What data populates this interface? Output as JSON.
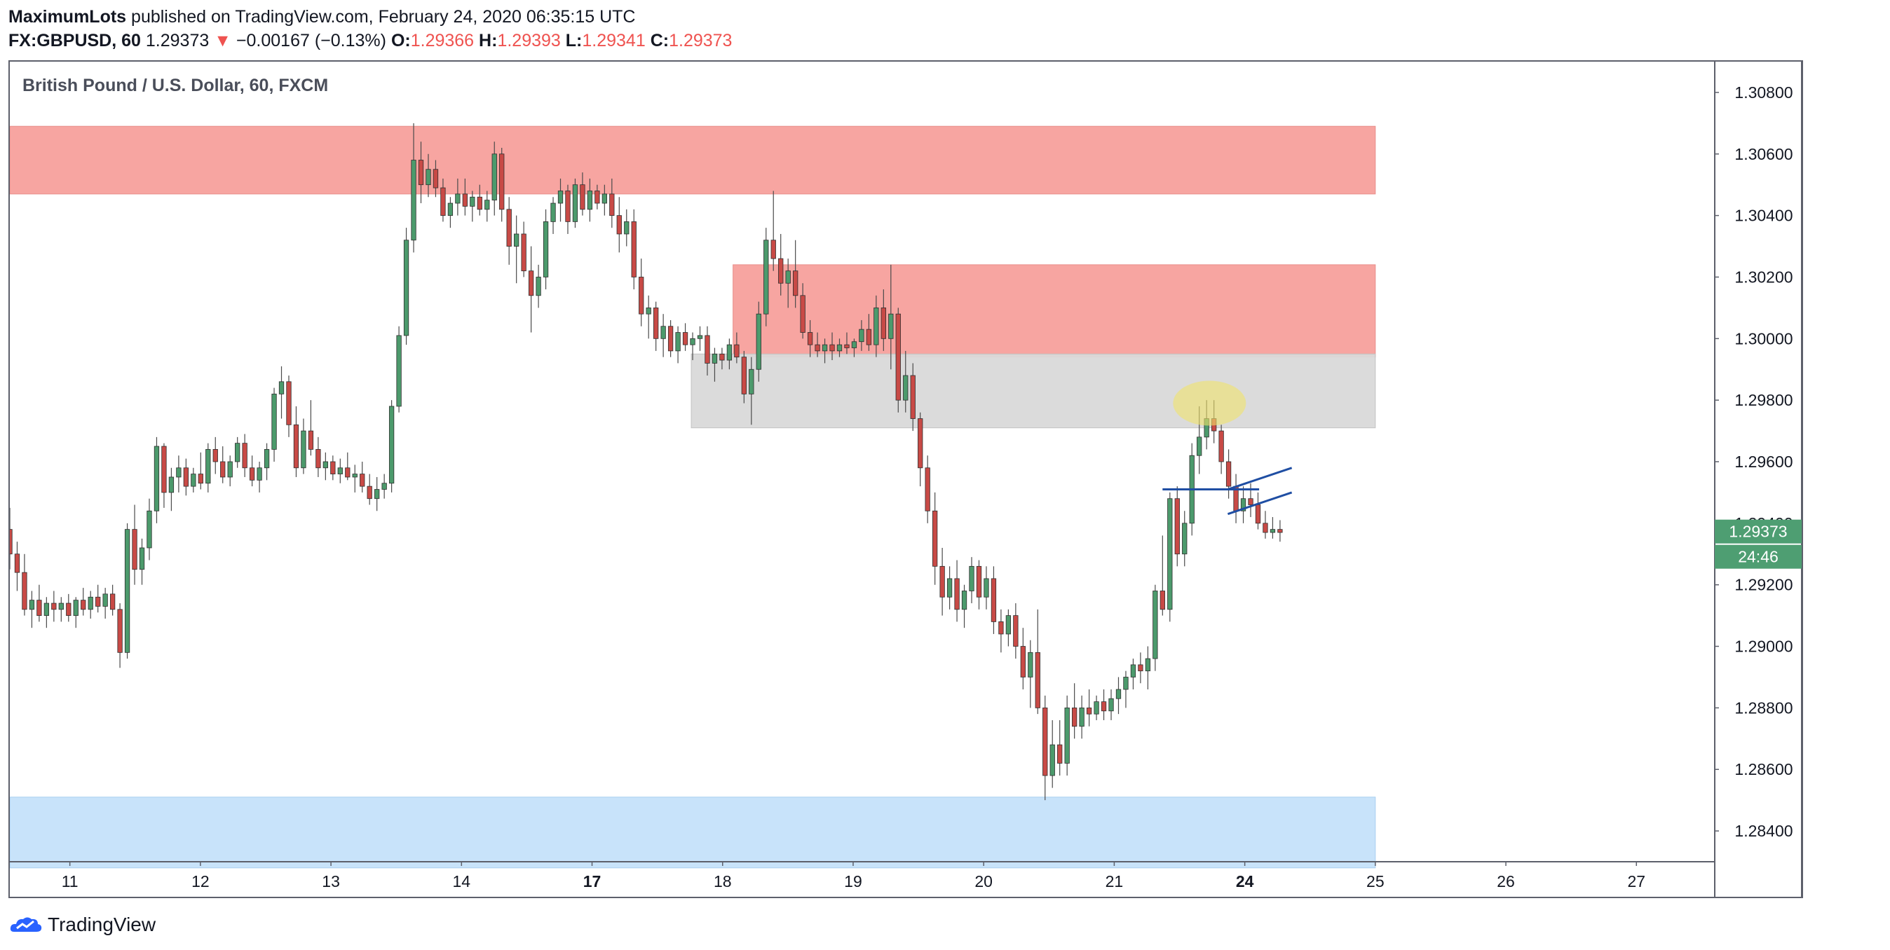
{
  "header": {
    "author": "MaximumLots",
    "published_text": " published on TradingView.com, February 24, 2020 06:35:15 UTC",
    "symbol": "FX:GBPUSD, 60",
    "last": "1.29373",
    "change_arrow": "▼",
    "change": "−0.00167 (−0.13%)",
    "o_label": "O:",
    "o": "1.29366",
    "h_label": "H:",
    "h": "1.29393",
    "l_label": "L:",
    "l": "1.29341",
    "c_label": "C:",
    "c": "1.29373"
  },
  "pane_title": "British Pound / U.S. Dollar, 60, FXCM",
  "price_label": "1.29373",
  "countdown": "24:46",
  "brand": "TradingView",
  "colors": {
    "up": "#26a69a",
    "up_fill": "#4c9a6c",
    "down": "#ef5350",
    "down_fill": "#c84a46",
    "resistance": "#f7a09c",
    "support": "#c5e1fa",
    "neutral_zone": "#d9d9d9",
    "highlight": "#f0e26b",
    "drawing_line": "#1f4ea3",
    "price_tag": "#4e9e72"
  },
  "chart_data": {
    "type": "candlestick",
    "symbol": "GBPUSD",
    "ylim": [
      1.283,
      1.309
    ],
    "y_ticks": [
      "1.30800",
      "1.30600",
      "1.30400",
      "1.30200",
      "1.30000",
      "1.29800",
      "1.29600",
      "1.29400",
      "1.29200",
      "1.29000",
      "1.28800",
      "1.28600",
      "1.28400"
    ],
    "x_ticks": [
      {
        "label": "11",
        "day": 11
      },
      {
        "label": "12",
        "day": 12
      },
      {
        "label": "13",
        "day": 13
      },
      {
        "label": "14",
        "day": 14
      },
      {
        "label": "17",
        "day": 15
      },
      {
        "label": "18",
        "day": 16
      },
      {
        "label": "19",
        "day": 17
      },
      {
        "label": "20",
        "day": 18
      },
      {
        "label": "21",
        "day": 19
      },
      {
        "label": "24",
        "day": 20
      },
      {
        "label": "25",
        "day": 21
      },
      {
        "label": "26",
        "day": 22
      },
      {
        "label": "27",
        "day": 23
      }
    ],
    "xlim": [
      10.54,
      23.6
    ],
    "zones": [
      {
        "name": "resistance-zone-upper",
        "from_day": 10.54,
        "to_day": 21.0,
        "low": 1.3047,
        "high": 1.3069,
        "kind": "resistance"
      },
      {
        "name": "resistance-zone-lower",
        "from_day": 16.08,
        "to_day": 21.0,
        "low": 1.2994,
        "high": 1.3024,
        "kind": "resistance"
      },
      {
        "name": "neutral-zone",
        "from_day": 15.76,
        "to_day": 21.0,
        "low": 1.2971,
        "high": 1.2995,
        "kind": "neutral"
      },
      {
        "name": "support-zone",
        "from_day": 10.54,
        "to_day": 21.0,
        "low": 1.2828,
        "high": 1.2851,
        "kind": "support"
      }
    ],
    "highlight": {
      "day": 19.73,
      "price": 1.2979
    },
    "lines": [
      {
        "from": [
          19.37,
          1.2951
        ],
        "to": [
          20.11,
          1.2951
        ]
      },
      {
        "from": [
          19.87,
          1.2951
        ],
        "to": [
          20.36,
          1.2958
        ]
      },
      {
        "from": [
          19.87,
          1.2943
        ],
        "to": [
          20.36,
          1.295
        ]
      }
    ],
    "candles": [
      [
        1.2938,
        1.2945,
        1.2925,
        1.293
      ],
      [
        1.293,
        1.2934,
        1.2918,
        1.2924
      ],
      [
        1.2924,
        1.293,
        1.291,
        1.2912
      ],
      [
        1.2912,
        1.2918,
        1.2906,
        1.2915
      ],
      [
        1.2915,
        1.292,
        1.2908,
        1.291
      ],
      [
        1.291,
        1.2916,
        1.2906,
        1.2914
      ],
      [
        1.2914,
        1.2918,
        1.2908,
        1.2912
      ],
      [
        1.2912,
        1.2916,
        1.2908,
        1.2914
      ],
      [
        1.2914,
        1.2917,
        1.2908,
        1.291
      ],
      [
        1.291,
        1.2916,
        1.2906,
        1.2915
      ],
      [
        1.2915,
        1.2919,
        1.291,
        1.2912
      ],
      [
        1.2912,
        1.2918,
        1.2909,
        1.2916
      ],
      [
        1.2916,
        1.292,
        1.2911,
        1.2913
      ],
      [
        1.2913,
        1.2919,
        1.2909,
        1.2917
      ],
      [
        1.2917,
        1.292,
        1.291,
        1.2912
      ],
      [
        1.2912,
        1.2914,
        1.2893,
        1.2898
      ],
      [
        1.2898,
        1.294,
        1.2896,
        1.2938
      ],
      [
        1.2938,
        1.2946,
        1.292,
        1.2925
      ],
      [
        1.2925,
        1.2935,
        1.292,
        1.2932
      ],
      [
        1.2932,
        1.2948,
        1.2928,
        1.2944
      ],
      [
        1.2944,
        1.2968,
        1.294,
        1.2965
      ],
      [
        1.2965,
        1.2966,
        1.2945,
        1.295
      ],
      [
        1.295,
        1.2958,
        1.2944,
        1.2955
      ],
      [
        1.2955,
        1.2962,
        1.295,
        1.2958
      ],
      [
        1.2958,
        1.2961,
        1.2949,
        1.2952
      ],
      [
        1.2952,
        1.2958,
        1.295,
        1.2956
      ],
      [
        1.2956,
        1.2963,
        1.2951,
        1.2953
      ],
      [
        1.2953,
        1.2966,
        1.295,
        1.2964
      ],
      [
        1.2964,
        1.2968,
        1.2956,
        1.296
      ],
      [
        1.296,
        1.2965,
        1.2953,
        1.2955
      ],
      [
        1.2955,
        1.2962,
        1.2952,
        1.296
      ],
      [
        1.296,
        1.2968,
        1.2958,
        1.2966
      ],
      [
        1.2966,
        1.2969,
        1.2955,
        1.2958
      ],
      [
        1.2958,
        1.2962,
        1.2952,
        1.2954
      ],
      [
        1.2954,
        1.296,
        1.295,
        1.2958
      ],
      [
        1.2958,
        1.2966,
        1.2954,
        1.2964
      ],
      [
        1.2964,
        1.2984,
        1.296,
        1.2982
      ],
      [
        1.2982,
        1.2991,
        1.2974,
        1.2986
      ],
      [
        1.2986,
        1.2988,
        1.2968,
        1.2972
      ],
      [
        1.2972,
        1.2978,
        1.2955,
        1.2958
      ],
      [
        1.2958,
        1.2974,
        1.2956,
        1.297
      ],
      [
        1.297,
        1.298,
        1.2962,
        1.2964
      ],
      [
        1.2964,
        1.2968,
        1.2955,
        1.2958
      ],
      [
        1.2958,
        1.2963,
        1.2954,
        1.296
      ],
      [
        1.296,
        1.2962,
        1.2954,
        1.2956
      ],
      [
        1.2956,
        1.2961,
        1.2953,
        1.2958
      ],
      [
        1.2958,
        1.2963,
        1.2954,
        1.2955
      ],
      [
        1.2955,
        1.2959,
        1.295,
        1.2956
      ],
      [
        1.2956,
        1.296,
        1.295,
        1.2952
      ],
      [
        1.2952,
        1.2956,
        1.2946,
        1.2948
      ],
      [
        1.2948,
        1.2955,
        1.2944,
        1.2951
      ],
      [
        1.2951,
        1.2956,
        1.2948,
        1.2953
      ],
      [
        1.2953,
        1.298,
        1.295,
        1.2978
      ],
      [
        1.2978,
        1.3004,
        1.2976,
        1.3001
      ],
      [
        1.3001,
        1.3036,
        1.2998,
        1.3032
      ],
      [
        1.3032,
        1.307,
        1.3028,
        1.3058
      ],
      [
        1.3058,
        1.3064,
        1.3044,
        1.305
      ],
      [
        1.305,
        1.306,
        1.3046,
        1.3055
      ],
      [
        1.3055,
        1.3058,
        1.3046,
        1.3049
      ],
      [
        1.3049,
        1.3052,
        1.3038,
        1.304
      ],
      [
        1.304,
        1.3046,
        1.3036,
        1.3044
      ],
      [
        1.3044,
        1.3052,
        1.304,
        1.3047
      ],
      [
        1.3047,
        1.3052,
        1.304,
        1.3043
      ],
      [
        1.3043,
        1.3048,
        1.3038,
        1.3046
      ],
      [
        1.3046,
        1.305,
        1.304,
        1.3042
      ],
      [
        1.3042,
        1.3048,
        1.3038,
        1.3045
      ],
      [
        1.3045,
        1.3064,
        1.304,
        1.306
      ],
      [
        1.306,
        1.3062,
        1.3038,
        1.3042
      ],
      [
        1.3042,
        1.3046,
        1.3024,
        1.303
      ],
      [
        1.303,
        1.304,
        1.3018,
        1.3034
      ],
      [
        1.3034,
        1.3038,
        1.302,
        1.3022
      ],
      [
        1.3022,
        1.303,
        1.3002,
        1.3014
      ],
      [
        1.3014,
        1.3024,
        1.301,
        1.302
      ],
      [
        1.302,
        1.3042,
        1.3016,
        1.3038
      ],
      [
        1.3038,
        1.3046,
        1.3034,
        1.3044
      ],
      [
        1.3044,
        1.3052,
        1.3038,
        1.3048
      ],
      [
        1.3048,
        1.305,
        1.3034,
        1.3038
      ],
      [
        1.3038,
        1.3052,
        1.3036,
        1.305
      ],
      [
        1.305,
        1.3054,
        1.304,
        1.3042
      ],
      [
        1.3042,
        1.3052,
        1.3038,
        1.3048
      ],
      [
        1.3048,
        1.305,
        1.3042,
        1.3044
      ],
      [
        1.3044,
        1.305,
        1.304,
        1.3047
      ],
      [
        1.3047,
        1.3052,
        1.3036,
        1.304
      ],
      [
        1.304,
        1.3046,
        1.3028,
        1.3034
      ],
      [
        1.3034,
        1.3042,
        1.303,
        1.3038
      ],
      [
        1.3038,
        1.3042,
        1.3016,
        1.302
      ],
      [
        1.302,
        1.3026,
        1.3004,
        1.3008
      ],
      [
        1.3008,
        1.3014,
        1.3,
        1.301
      ],
      [
        1.301,
        1.3012,
        1.2996,
        1.3
      ],
      [
        1.3,
        1.3008,
        1.2994,
        1.3004
      ],
      [
        1.3004,
        1.3006,
        1.2994,
        1.2996
      ],
      [
        1.2996,
        1.3004,
        1.2992,
        1.3002
      ],
      [
        1.3002,
        1.3005,
        1.2996,
        1.2998
      ],
      [
        1.2998,
        1.3002,
        1.2993,
        1.3
      ],
      [
        1.3,
        1.3004,
        1.2996,
        1.3001
      ],
      [
        1.3001,
        1.3004,
        1.2988,
        1.2992
      ],
      [
        1.2992,
        1.2997,
        1.2986,
        1.2995
      ],
      [
        1.2995,
        1.2997,
        1.299,
        1.2993
      ],
      [
        1.2993,
        1.3,
        1.299,
        1.2998
      ],
      [
        1.2998,
        1.3002,
        1.2992,
        1.2994
      ],
      [
        1.2994,
        1.2996,
        1.2979,
        1.2982
      ],
      [
        1.2982,
        1.2994,
        1.2972,
        1.299
      ],
      [
        1.299,
        1.3012,
        1.2986,
        1.3008
      ],
      [
        1.3008,
        1.3036,
        1.3004,
        1.3032
      ],
      [
        1.3032,
        1.3048,
        1.3022,
        1.3026
      ],
      [
        1.3026,
        1.3034,
        1.3014,
        1.3018
      ],
      [
        1.3018,
        1.3026,
        1.301,
        1.3022
      ],
      [
        1.3022,
        1.3032,
        1.301,
        1.3014
      ],
      [
        1.3014,
        1.3018,
        1.3,
        1.3002
      ],
      [
        1.3002,
        1.3006,
        1.2994,
        1.2998
      ],
      [
        1.2998,
        1.3002,
        1.2994,
        1.2996
      ],
      [
        1.2996,
        1.3,
        1.2992,
        1.2998
      ],
      [
        1.2998,
        1.3002,
        1.2993,
        1.2996
      ],
      [
        1.2996,
        1.3,
        1.2994,
        1.2998
      ],
      [
        1.2998,
        1.3002,
        1.2995,
        1.2997
      ],
      [
        1.2997,
        1.3,
        1.2994,
        1.2999
      ],
      [
        1.2999,
        1.3006,
        1.2996,
        1.3003
      ],
      [
        1.3003,
        1.3008,
        1.2996,
        1.2998
      ],
      [
        1.2998,
        1.3014,
        1.2994,
        1.301
      ],
      [
        1.301,
        1.3016,
        1.2996,
        1.3
      ],
      [
        1.3,
        1.3024,
        1.299,
        1.3008
      ],
      [
        1.3008,
        1.301,
        1.2976,
        1.298
      ],
      [
        1.298,
        1.2996,
        1.2976,
        1.2988
      ],
      [
        1.2988,
        1.2992,
        1.297,
        1.2974
      ],
      [
        1.2974,
        1.2976,
        1.2952,
        1.2958
      ],
      [
        1.2958,
        1.2962,
        1.294,
        1.2944
      ],
      [
        1.2944,
        1.295,
        1.292,
        1.2926
      ],
      [
        1.2926,
        1.2932,
        1.291,
        1.2916
      ],
      [
        1.2916,
        1.2926,
        1.2912,
        1.2922
      ],
      [
        1.2922,
        1.2928,
        1.2908,
        1.2912
      ],
      [
        1.2912,
        1.292,
        1.2906,
        1.2918
      ],
      [
        1.2918,
        1.2929,
        1.2914,
        1.2926
      ],
      [
        1.2926,
        1.2928,
        1.2912,
        1.2916
      ],
      [
        1.2916,
        1.2926,
        1.2912,
        1.2922
      ],
      [
        1.2922,
        1.2926,
        1.2904,
        1.2908
      ],
      [
        1.2908,
        1.2912,
        1.2898,
        1.2904
      ],
      [
        1.2904,
        1.2912,
        1.29,
        1.291
      ],
      [
        1.291,
        1.2914,
        1.2896,
        1.29
      ],
      [
        1.29,
        1.2906,
        1.2886,
        1.289
      ],
      [
        1.289,
        1.2902,
        1.288,
        1.2898
      ],
      [
        1.2898,
        1.2912,
        1.2878,
        1.288
      ],
      [
        1.288,
        1.2884,
        1.285,
        1.2858
      ],
      [
        1.2858,
        1.2876,
        1.2854,
        1.2868
      ],
      [
        1.2868,
        1.2876,
        1.2858,
        1.2862
      ],
      [
        1.2862,
        1.2884,
        1.2858,
        1.288
      ],
      [
        1.288,
        1.2888,
        1.287,
        1.2874
      ],
      [
        1.2874,
        1.2884,
        1.287,
        1.288
      ],
      [
        1.288,
        1.2886,
        1.2874,
        1.2878
      ],
      [
        1.2878,
        1.2884,
        1.2876,
        1.2882
      ],
      [
        1.2882,
        1.2886,
        1.2876,
        1.2879
      ],
      [
        1.2879,
        1.2886,
        1.2876,
        1.2883
      ],
      [
        1.2883,
        1.289,
        1.2878,
        1.2886
      ],
      [
        1.2886,
        1.2892,
        1.288,
        1.289
      ],
      [
        1.289,
        1.2896,
        1.2886,
        1.2894
      ],
      [
        1.2894,
        1.2898,
        1.2888,
        1.2892
      ],
      [
        1.2892,
        1.29,
        1.2886,
        1.2896
      ],
      [
        1.2896,
        1.292,
        1.2892,
        1.2918
      ],
      [
        1.2918,
        1.2936,
        1.291,
        1.2912
      ],
      [
        1.2912,
        1.295,
        1.2908,
        1.2948
      ],
      [
        1.2948,
        1.2952,
        1.2926,
        1.293
      ],
      [
        1.293,
        1.2944,
        1.2926,
        1.294
      ],
      [
        1.294,
        1.2966,
        1.2936,
        1.2962
      ],
      [
        1.2962,
        1.2978,
        1.2956,
        1.2968
      ],
      [
        1.2968,
        1.298,
        1.2964,
        1.2974
      ],
      [
        1.2974,
        1.298,
        1.2966,
        1.297
      ],
      [
        1.297,
        1.2972,
        1.2956,
        1.296
      ],
      [
        1.296,
        1.2964,
        1.2948,
        1.2952
      ],
      [
        1.2952,
        1.2956,
        1.294,
        1.2944
      ],
      [
        1.2944,
        1.2952,
        1.294,
        1.2948
      ],
      [
        1.2948,
        1.2953,
        1.2942,
        1.2946
      ],
      [
        1.2946,
        1.295,
        1.2938,
        1.294
      ],
      [
        1.294,
        1.2944,
        1.2935,
        1.2937
      ],
      [
        1.2937,
        1.2942,
        1.2935,
        1.2938
      ],
      [
        1.2938,
        1.2941,
        1.2934,
        1.2937
      ]
    ]
  }
}
